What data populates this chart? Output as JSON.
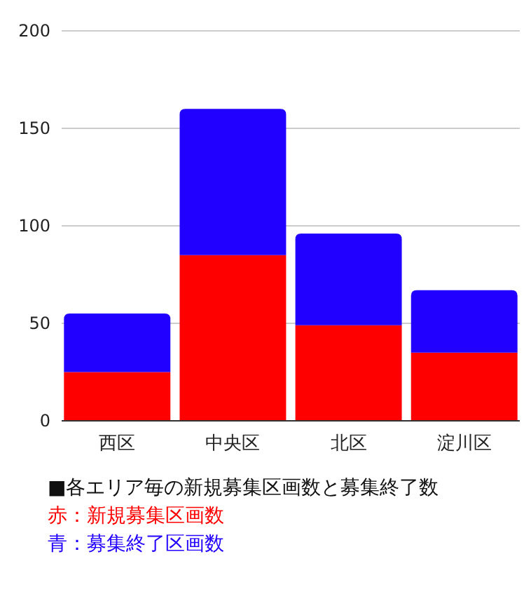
{
  "chart_data": {
    "type": "bar",
    "title": "■各エリア毎の新規募集区画数と募集終了数",
    "categories": [
      "西区",
      "中央区",
      "北区",
      "淀川区"
    ],
    "stacked": true,
    "series": [
      {
        "name": "赤：新規募集区画数",
        "color": "#ff0000",
        "values": [
          25,
          85,
          49,
          35
        ]
      },
      {
        "name": "青：募集終了区画数",
        "color": "#2200ff",
        "values": [
          30,
          75,
          47,
          32
        ]
      }
    ],
    "ylim": [
      0,
      200
    ],
    "yticks": [
      0,
      50,
      100,
      150,
      200
    ],
    "grid": "y",
    "legend": "bottom"
  }
}
